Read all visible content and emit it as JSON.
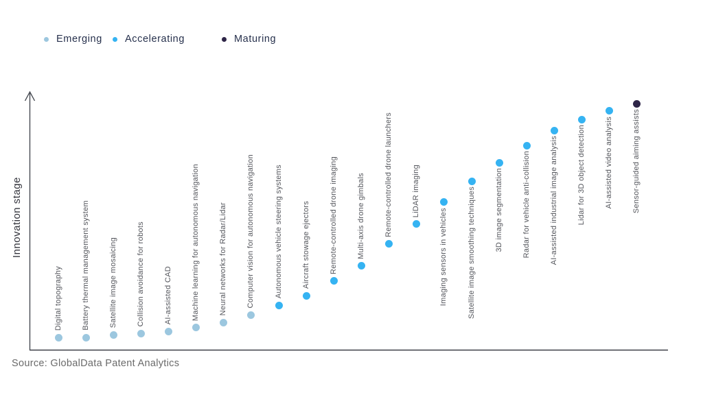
{
  "legend": {
    "items": [
      {
        "label": "Emerging",
        "color": "#9cc7df"
      },
      {
        "label": "Accelerating",
        "color": "#35b3f2"
      },
      {
        "label": "Maturing",
        "color": "#2e2547"
      }
    ]
  },
  "axis": {
    "y_label": "Innovation stage"
  },
  "source": "Source: GlobalData Patent Analytics",
  "chart_data": {
    "type": "scatter",
    "title": "",
    "xlabel": "",
    "ylabel": "Innovation stage",
    "legend_position": "top-left",
    "grid": false,
    "y_axis_note": "qualitative axis, no tick labels; dot height = relative innovation stage (0-100 estimated from pixels)",
    "legend": [
      "Emerging",
      "Accelerating",
      "Maturing"
    ],
    "items": [
      {
        "label": "Digital topography",
        "stage": "Emerging",
        "value": 5,
        "label_position": "above"
      },
      {
        "label": "Battery thermal management system",
        "stage": "Emerging",
        "value": 5,
        "label_position": "above"
      },
      {
        "label": "Satellite image mosaicing",
        "stage": "Emerging",
        "value": 6,
        "label_position": "above"
      },
      {
        "label": "Collision avoidance for robots",
        "stage": "Emerging",
        "value": 6.5,
        "label_position": "above"
      },
      {
        "label": "AI-assisted CAD",
        "stage": "Emerging",
        "value": 7.5,
        "label_position": "above"
      },
      {
        "label": "Machine learning for autonomous navigation",
        "stage": "Emerging",
        "value": 9,
        "label_position": "above"
      },
      {
        "label": "Neural networks for Radar/Lidar",
        "stage": "Emerging",
        "value": 11,
        "label_position": "above"
      },
      {
        "label": "Computer vision for autonomous navigation",
        "stage": "Emerging",
        "value": 14,
        "label_position": "above"
      },
      {
        "label": "Autonomous vehicle steering systems",
        "stage": "Accelerating",
        "value": 18,
        "label_position": "above"
      },
      {
        "label": "Aircraft stowage ejectors",
        "stage": "Accelerating",
        "value": 22,
        "label_position": "above"
      },
      {
        "label": "Remote-controlled drone imaging",
        "stage": "Accelerating",
        "value": 28,
        "label_position": "above"
      },
      {
        "label": "Multi-axis drone gimbals",
        "stage": "Accelerating",
        "value": 34,
        "label_position": "above"
      },
      {
        "label": "Remote-controlled drone launchers",
        "stage": "Accelerating",
        "value": 43,
        "label_position": "above"
      },
      {
        "label": "LiDAR imaging",
        "stage": "Accelerating",
        "value": 51,
        "label_position": "above"
      },
      {
        "label": "Imaging sensors in vehicles",
        "stage": "Accelerating",
        "value": 60,
        "label_position": "below"
      },
      {
        "label": "Satellite image smoothing techniques",
        "stage": "Accelerating",
        "value": 68.5,
        "label_position": "below"
      },
      {
        "label": "3D image segmentation",
        "stage": "Accelerating",
        "value": 76,
        "label_position": "below"
      },
      {
        "label": "Radar for vehicle anti-collision",
        "stage": "Accelerating",
        "value": 83,
        "label_position": "below"
      },
      {
        "label": "AI-assisted industrial image analysis",
        "stage": "Accelerating",
        "value": 89,
        "label_position": "below"
      },
      {
        "label": "Lidar for 3D object detection",
        "stage": "Accelerating",
        "value": 93.5,
        "label_position": "below"
      },
      {
        "label": "AI-assisted video analysis",
        "stage": "Accelerating",
        "value": 97,
        "label_position": "below"
      },
      {
        "label": "Sensor-guided aiming assists",
        "stage": "Maturing",
        "value": 100,
        "label_position": "below"
      }
    ]
  }
}
